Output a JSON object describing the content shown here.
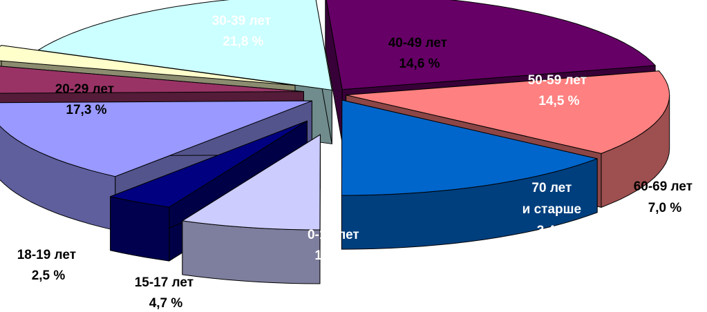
{
  "chart_data": {
    "type": "pie",
    "style": "3d-exploded",
    "slices": [
      {
        "label": "30-39 лет",
        "value": 21.8,
        "value_text": "21,8 %",
        "color": "#660066",
        "label_color": "#ffffff"
      },
      {
        "label": "40-49 лет",
        "value": 14.6,
        "value_text": "14,6 %",
        "color": "#ff8080",
        "label_color": "#000000"
      },
      {
        "label": "50-59 лет",
        "value": 14.5,
        "value_text": "14,5 %",
        "color": "#0066cc",
        "label_color": "#ffffff"
      },
      {
        "label": "60-69 лет",
        "value": 7.0,
        "value_text": "7,0 %",
        "color": "#ccccff",
        "label_color": "#000000"
      },
      {
        "label": "70 лет",
        "label2": "и старше",
        "value": 3.4,
        "value_text": "3,4 %",
        "color": "#000080",
        "label_color": "#ffffff"
      },
      {
        "label": "0-14 лет",
        "value": 14.3,
        "value_text": "14,3 %",
        "color": "#9999ff",
        "label_color": "#ffffff"
      },
      {
        "label": "15-17 лет",
        "value": 4.7,
        "value_text": "4,7 %",
        "color": "#993366",
        "label_color": "#000000"
      },
      {
        "label": "18-19 лет",
        "value": 2.5,
        "value_text": "2,5 %",
        "color": "#ffffcc",
        "label_color": "#000000"
      },
      {
        "label": "20-29 лет",
        "value": 17.3,
        "value_text": "17,3 %",
        "color": "#ccffff",
        "label_color": "#000000"
      }
    ]
  }
}
